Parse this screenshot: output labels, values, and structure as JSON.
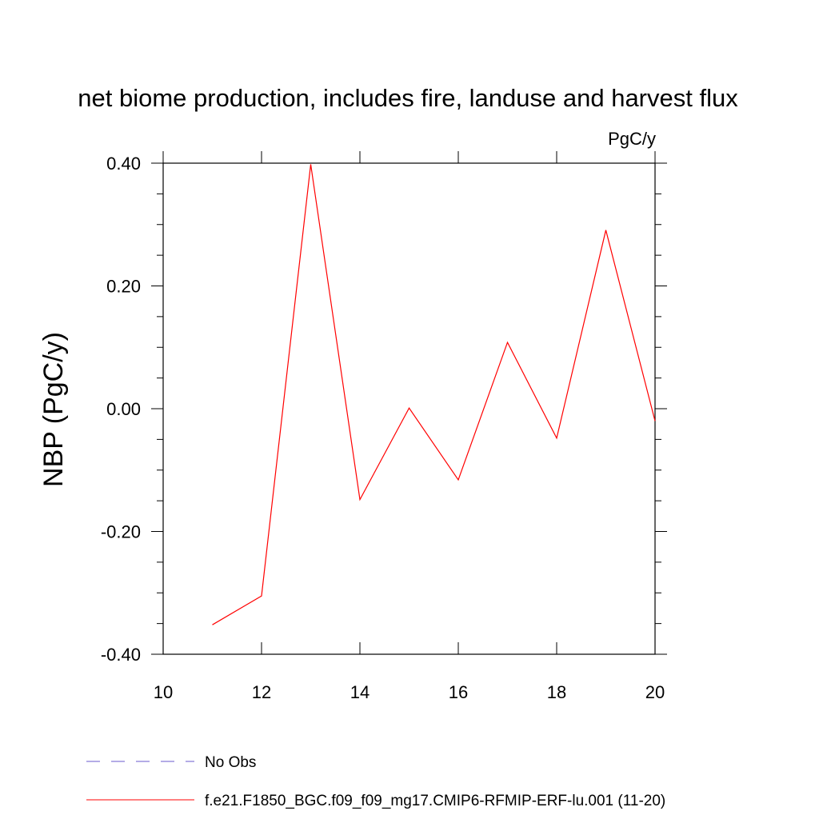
{
  "chart_data": {
    "type": "line",
    "title": "net biome production, includes fire, landuse and harvest flux",
    "units_label": "PgC/y",
    "ylabel": "NBP  (PgC/y)",
    "xlabel": "",
    "xlim": [
      10,
      20
    ],
    "ylim": [
      -0.4,
      0.4
    ],
    "x_ticks": [
      10,
      12,
      14,
      16,
      18,
      20
    ],
    "x_tick_labels": [
      "10",
      "12",
      "14",
      "16",
      "18",
      "20"
    ],
    "y_ticks": [
      -0.4,
      -0.2,
      0.0,
      0.2,
      0.4
    ],
    "y_tick_labels": [
      "-0.40",
      "-0.20",
      "0.00",
      "0.20",
      "0.40"
    ],
    "grid": false,
    "legend_position": "bottom",
    "series": [
      {
        "name": "f.e21.F1850_BGC.f09_f09_mg17.CMIP6-RFMIP-ERF-lu.001 (11-20)",
        "color": "#ff0000",
        "dash": "solid",
        "x": [
          11,
          12,
          13,
          14,
          15,
          16,
          17,
          18,
          19,
          20
        ],
        "y": [
          -0.352,
          -0.305,
          0.398,
          -0.148,
          0.001,
          -0.116,
          0.108,
          -0.048,
          0.291,
          -0.02
        ]
      }
    ],
    "legend": [
      {
        "label": "No Obs",
        "color": "#6a5acd",
        "dash": "dashed"
      },
      {
        "label": "f.e21.F1850_BGC.f09_f09_mg17.CMIP6-RFMIP-ERF-lu.001 (11-20)",
        "color": "#ff0000",
        "dash": "solid"
      }
    ]
  }
}
